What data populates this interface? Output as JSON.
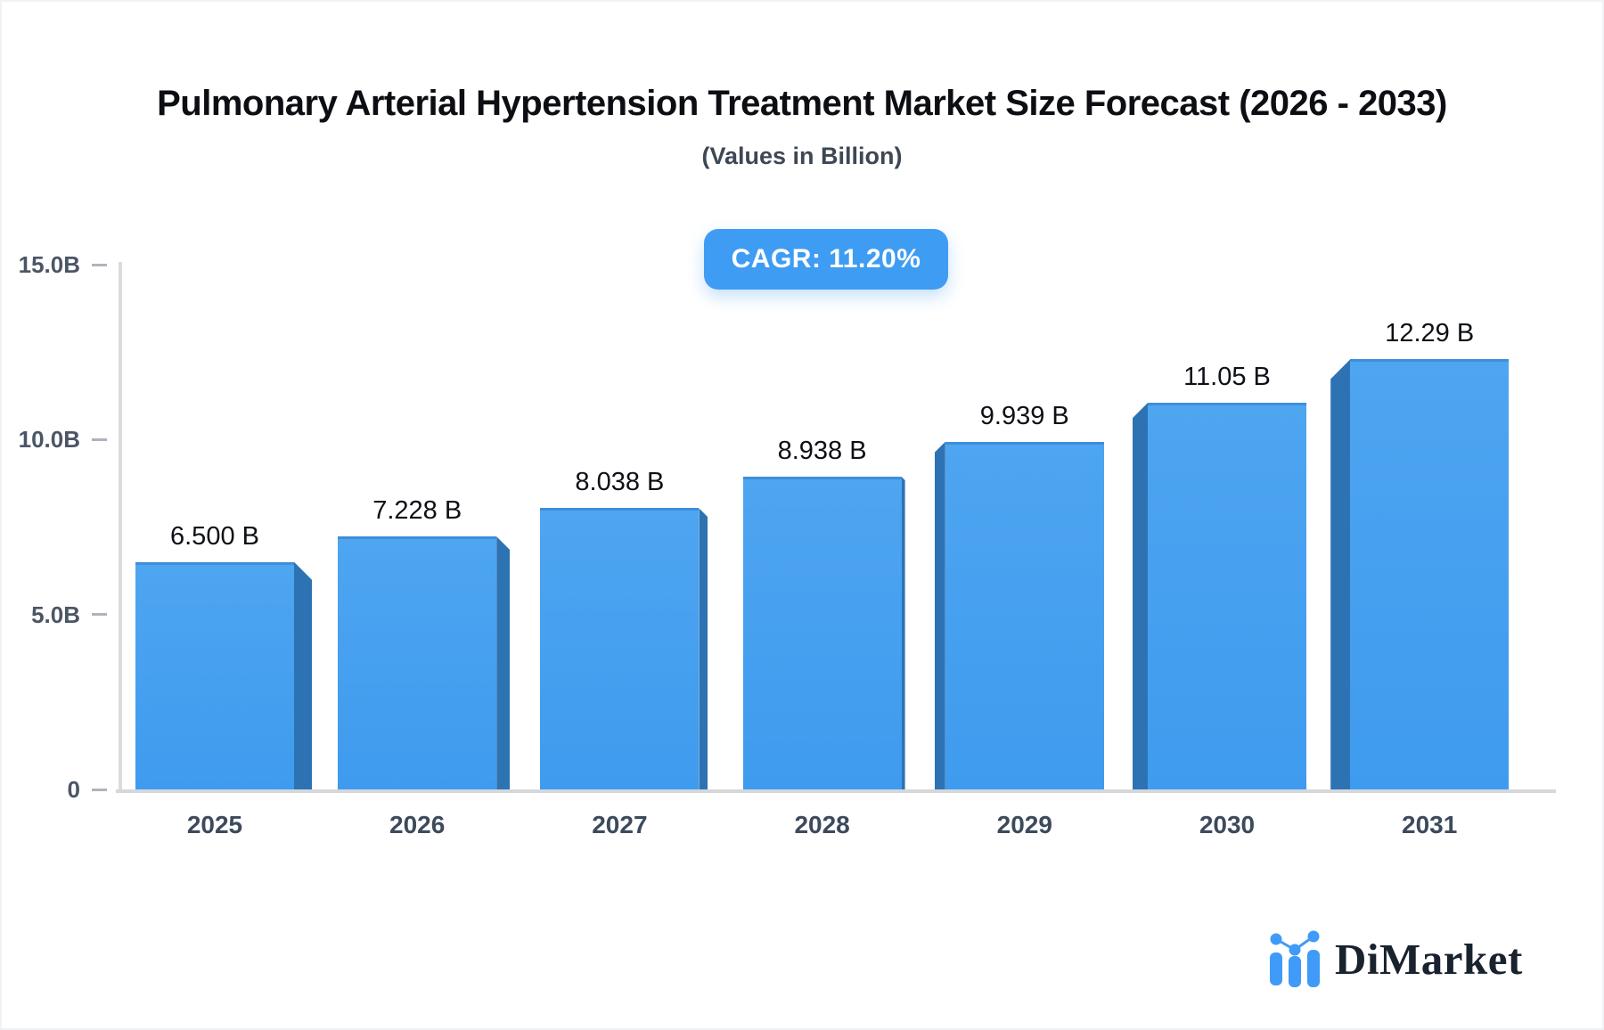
{
  "header": {
    "title": "Pulmonary Arterial Hypertension Treatment Market Size Forecast (2026 - 2033)",
    "subtitle": "(Values in Billion)"
  },
  "badge": {
    "label": "CAGR: 11.20%",
    "color": "#3f9cf3"
  },
  "chart_data": {
    "type": "bar",
    "title": "Pulmonary Arterial Hypertension Treatment Market Size Forecast (2026 - 2033)",
    "subtitle": "(Values in Billion)",
    "categories": [
      "2025",
      "2026",
      "2027",
      "2028",
      "2029",
      "2030",
      "2031"
    ],
    "values": [
      6.5,
      7.228,
      8.038,
      8.938,
      9.939,
      11.05,
      12.29
    ],
    "value_labels": [
      "6.500 B",
      "7.228 B",
      "8.038 B",
      "8.938 B",
      "9.939 B",
      "11.05 B",
      "12.29 B"
    ],
    "xlabel": "",
    "ylabel": "",
    "ylim": [
      0,
      15
    ],
    "yticks": [
      {
        "value": 0,
        "label": "0"
      },
      {
        "value": 5,
        "label": "5.0B"
      },
      {
        "value": 10,
        "label": "10.0B"
      },
      {
        "value": 15,
        "label": "15.0B"
      }
    ],
    "grid": false,
    "legend": false,
    "bar_front_color": "#4ea5f0",
    "bar_side_color": "#2d73b4",
    "annotation": "CAGR: 11.20%"
  },
  "branding": {
    "name": "DiMarket",
    "icon": "bar-chart-logo-icon",
    "navy": "#19222f",
    "blue": "#3f9bf7"
  }
}
